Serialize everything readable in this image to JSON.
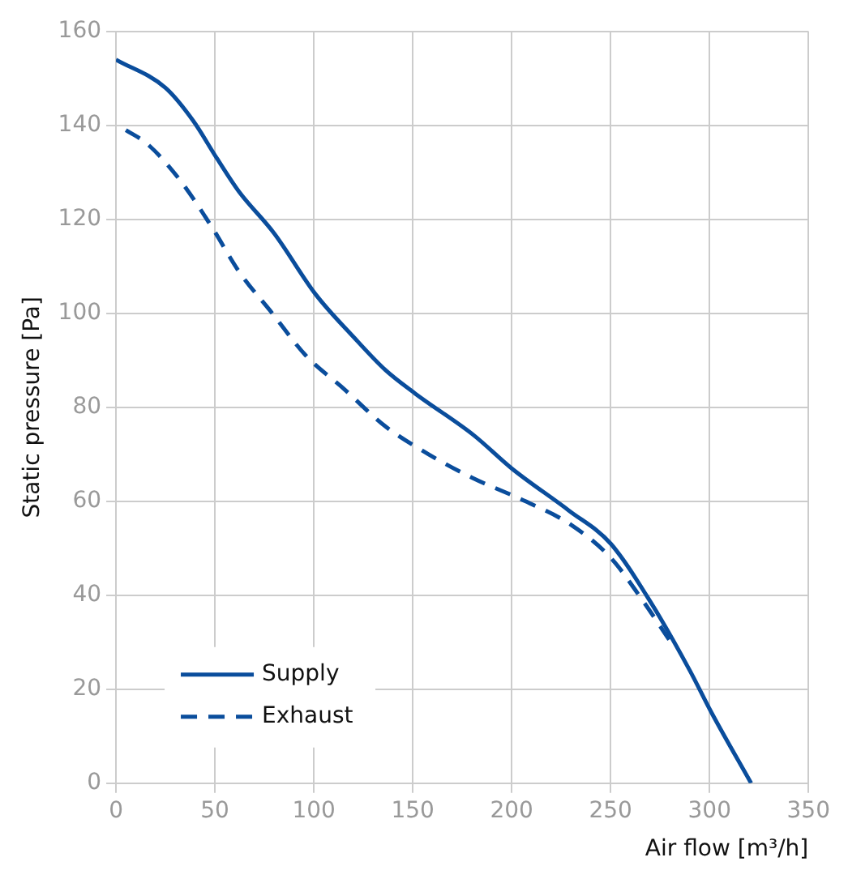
{
  "chart_data": {
    "type": "line",
    "xlabel": "Air flow [m³/h]",
    "ylabel": "Static pressure [Pa]",
    "xlim": [
      0,
      350
    ],
    "xticks": [
      0,
      50,
      100,
      150,
      200,
      250,
      300,
      350
    ],
    "ylim": [
      0,
      160
    ],
    "yticks": [
      0,
      20,
      40,
      60,
      80,
      100,
      120,
      140,
      160
    ],
    "grid": true,
    "legend": "bottom left",
    "marker": "none",
    "series": [
      {
        "name": "Supply",
        "color": "#0a4d9c",
        "line_style": "solid",
        "x": [
          0,
          25,
          39,
          51,
          62,
          80,
          101,
          120,
          136,
          151,
          181,
          200,
          229,
          250,
          271,
          290,
          301,
          321
        ],
        "values": [
          154,
          148,
          141,
          133,
          126,
          117,
          104,
          95,
          88,
          83,
          74,
          67,
          58,
          51,
          38,
          24,
          15,
          0
        ]
      },
      {
        "name": "Exhaust",
        "color": "#0a4d9c",
        "line_style": "dashed",
        "x": [
          5,
          16,
          33,
          49,
          62,
          79,
          96,
          115,
          136,
          158,
          180,
          207,
          230,
          250,
          266,
          282
        ],
        "values": [
          139,
          136,
          128,
          118,
          109,
          100,
          91,
          84,
          76,
          70,
          65,
          60,
          55,
          48,
          39,
          29
        ]
      }
    ]
  }
}
